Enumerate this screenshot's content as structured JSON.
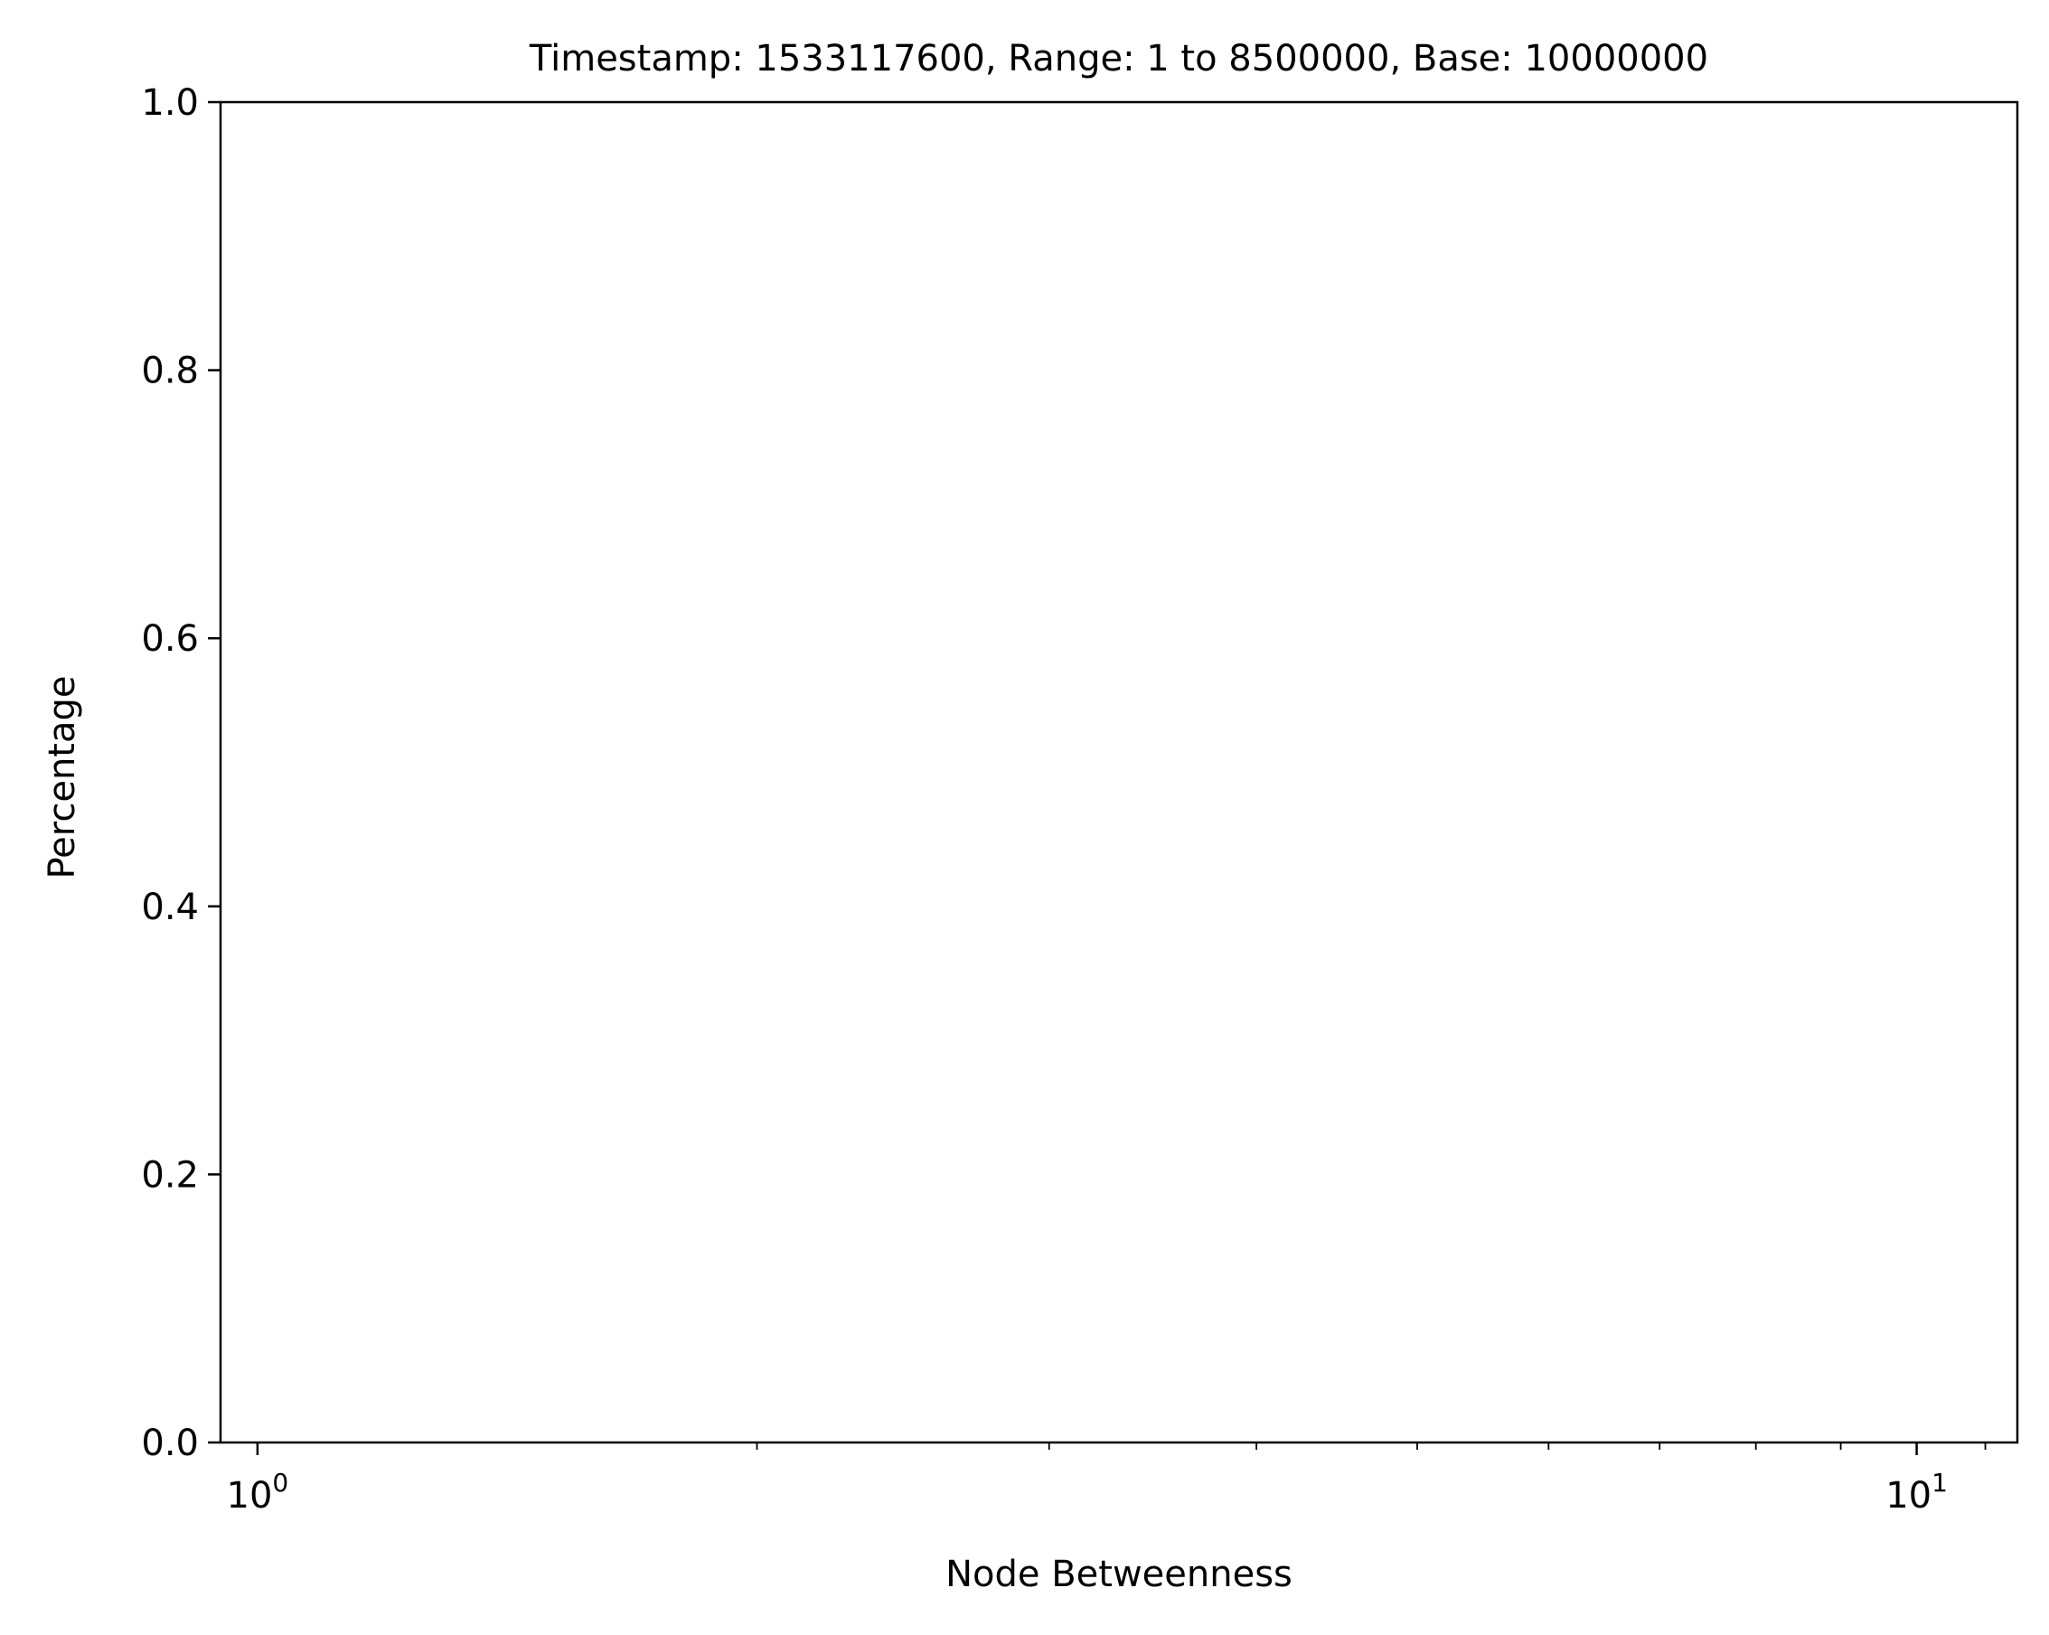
{
  "chart_data": {
    "type": "line",
    "title": "Timestamp: 1533117600, Range: 1 to 8500000, Base: 10000000",
    "xlabel": "Node Betweenness",
    "ylabel": "Percentage",
    "xscale": "log",
    "xlim": [
      0.95,
      11.5
    ],
    "ylim": [
      0.0,
      1.0
    ],
    "x_ticks": [
      {
        "value": 1,
        "base": "10",
        "exp": "0"
      },
      {
        "value": 10,
        "base": "10",
        "exp": "1"
      }
    ],
    "x_minor_ticks": [
      0.9,
      2,
      3,
      4,
      5,
      6,
      7,
      8,
      9,
      11
    ],
    "y_ticks": [
      "0.0",
      "0.2",
      "0.4",
      "0.6",
      "0.8",
      "1.0"
    ],
    "grid": false,
    "series": []
  }
}
